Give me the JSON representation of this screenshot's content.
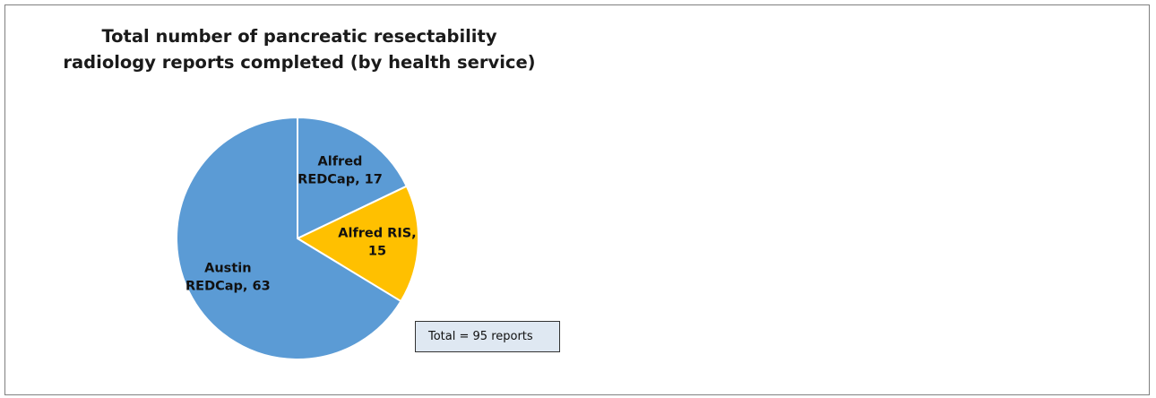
{
  "chart_data": {
    "type": "pie",
    "title": "Total number of pancreatic resectability radiology reports completed (by health service)",
    "title_lines": [
      "Total number of pancreatic resectability",
      "radiology reports completed (by health service)"
    ],
    "slices": [
      {
        "label": "Alfred REDCap",
        "value": 17,
        "label_lines": [
          "Alfred",
          "REDCap, 17"
        ],
        "color": "#5b9bd5"
      },
      {
        "label": "Alfred RIS",
        "value": 15,
        "label_lines": [
          "Alfred RIS,",
          "15"
        ],
        "color": "#ffc000"
      },
      {
        "label": "Austin REDCap",
        "value": 63,
        "label_lines": [
          "Austin",
          "REDCap, 63"
        ],
        "color": "#5b9bd5"
      }
    ],
    "start_angle": "12 o'clock",
    "direction": "clockwise",
    "annotation": "Total = 95 reports"
  }
}
